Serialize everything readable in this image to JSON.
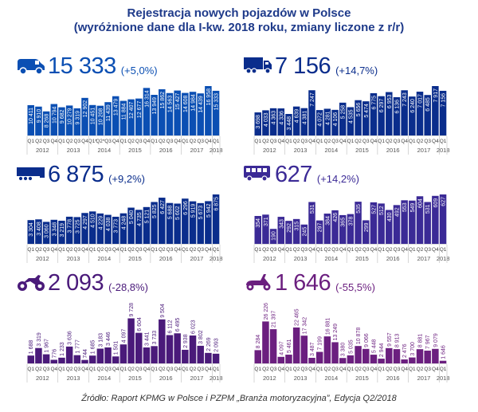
{
  "title_line1": "Rejestracja nowych pojazdów w Polsce",
  "title_line2": "(wyróżnione dane dla I-kw. 2018 roku, zmiany liczone z r/r)",
  "source": "Źródło: Raport KPMG w Polsce i PZPM „Branża motoryzacyjna”, Edycja Q2/2018",
  "chart_data": [
    {
      "type": "bar",
      "id": "vans",
      "icon": "van-icon",
      "headline_value": "15 333",
      "headline_change": "(+5,0%)",
      "color": "#0b4fb3",
      "label_inside": true,
      "categories": [
        "Q1",
        "Q2",
        "Q3",
        "Q4",
        "Q1",
        "Q2",
        "Q3",
        "Q4",
        "Q1*",
        "Q2*",
        "Q3",
        "Q4",
        "Q1",
        "Q2",
        "Q3",
        "Q4",
        "Q1",
        "Q2",
        "Q3",
        "Q4",
        "Q1",
        "Q2",
        "Q3",
        "Q4",
        "Q1"
      ],
      "years": [
        "2012",
        "2013",
        "2014",
        "2015",
        "2016",
        "2017",
        "2018"
      ],
      "values": [
        10411,
        9910,
        8268,
        10794,
        9682,
        10279,
        9319,
        12902,
        10451,
        10208,
        11439,
        13479,
        11884,
        12407,
        12677,
        16314,
        13949,
        15862,
        14563,
        15427,
        14608,
        14984,
        14439,
        16958,
        15333
      ],
      "labels": [
        "10 411",
        "9 910",
        "8 268",
        "10 794",
        "9 682",
        "10 279",
        "9 319",
        "12 902",
        "10 451",
        "10 208",
        "11 439",
        "13 479",
        "11 884",
        "12 407",
        "12 677",
        "16 314",
        "13 949",
        "15 862",
        "14 563",
        "15 427",
        "14 608",
        "14 984",
        "14 439",
        "16 958",
        "15 333"
      ]
    },
    {
      "type": "bar",
      "id": "trucks",
      "icon": "truck-icon",
      "headline_value": "7 156",
      "headline_change": "(+14,7%)",
      "color": "#0a2d8c",
      "label_inside": true,
      "categories": [
        "Q1",
        "Q2",
        "Q3",
        "Q4",
        "Q1",
        "Q2",
        "Q3",
        "Q4",
        "Q1",
        "Q2",
        "Q3",
        "Q4",
        "Q1",
        "Q2",
        "Q3",
        "Q4",
        "Q1",
        "Q2",
        "Q3",
        "Q4",
        "Q1",
        "Q2",
        "Q3",
        "Q4",
        "Q1"
      ],
      "years": [
        "2012",
        "2013",
        "2014",
        "2015",
        "2016",
        "2017",
        "2018"
      ],
      "values": [
        3698,
        4033,
        4363,
        4336,
        3448,
        4639,
        4381,
        7247,
        4072,
        4281,
        4106,
        5258,
        4535,
        5656,
        5474,
        6775,
        6297,
        6953,
        6136,
        7243,
        6240,
        7017,
        6485,
        7917,
        7156
      ],
      "labels": [
        "3 698",
        "4 033",
        "4 363",
        "4 336",
        "3 448",
        "4 639",
        "4 381",
        "7 247",
        "4 072",
        "4 281",
        "4 106",
        "5 258",
        "4 535",
        "5 656",
        "5 474",
        "6 775",
        "6 297",
        "6 953",
        "6 136",
        "7 243",
        "6 240",
        "7 017",
        "6 485",
        "7 917",
        "7 156"
      ]
    },
    {
      "type": "bar",
      "id": "trailers",
      "icon": "trailer-icon",
      "headline_value": "6 875",
      "headline_change": "(+9,2%)",
      "color": "#0a2d8c",
      "label_inside": true,
      "categories": [
        "Q1",
        "Q2",
        "Q3",
        "Q4",
        "Q1",
        "Q2",
        "Q3",
        "Q4",
        "Q1",
        "Q2",
        "Q3",
        "Q4",
        "Q1",
        "Q2",
        "Q3",
        "Q4",
        "Q1",
        "Q2",
        "Q3",
        "Q4",
        "Q1",
        "Q2",
        "Q3",
        "Q4",
        "Q1"
      ],
      "years": [
        "2012",
        "2013",
        "2014",
        "2015",
        "2016",
        "2017",
        "2018"
      ],
      "values": [
        3304,
        3408,
        3060,
        3348,
        3219,
        3778,
        3725,
        4297,
        4510,
        4229,
        4038,
        3773,
        4248,
        5040,
        4735,
        5121,
        5825,
        6427,
        5688,
        5602,
        6296,
        5919,
        5673,
        5942,
        6875
      ],
      "labels": [
        "3 304",
        "3 408",
        "3 060",
        "3 348",
        "3 219",
        "3 778",
        "3 725",
        "4 297",
        "4 510",
        "4 229",
        "4 038",
        "3 773",
        "4 248",
        "5 040",
        "4 735",
        "5 121",
        "5 825",
        "6 427",
        "5 688",
        "5 602",
        "6 296",
        "5 919",
        "5 673",
        "5 942",
        "6 875"
      ]
    },
    {
      "type": "bar",
      "id": "buses",
      "icon": "bus-icon",
      "headline_value": "627",
      "headline_change": "(+14,2%)",
      "color": "#3b2a96",
      "label_inside": true,
      "categories": [
        "Q1",
        "Q2",
        "Q3",
        "Q4",
        "Q1",
        "Q2",
        "Q3",
        "Q4",
        "Q1",
        "Q2",
        "Q3",
        "Q4",
        "Q1",
        "Q2",
        "Q3",
        "Q4",
        "Q1",
        "Q2",
        "Q3",
        "Q4",
        "Q1",
        "Q2",
        "Q3",
        "Q4",
        "Q1"
      ],
      "years": [
        "2012",
        "2013",
        "2014",
        "2015",
        "2016",
        "2017",
        "2018"
      ],
      "values": [
        354,
        371,
        190,
        343,
        292,
        315,
        245,
        531,
        297,
        384,
        426,
        365,
        378,
        535,
        299,
        527,
        512,
        430,
        492,
        553,
        549,
        604,
        531,
        609,
        627
      ],
      "labels": [
        "354",
        "371",
        "190",
        "343",
        "292",
        "315",
        "245",
        "531",
        "297",
        "384",
        "426",
        "365",
        "378",
        "535",
        "299",
        "527",
        "512",
        "430",
        "492",
        "553",
        "549",
        "604",
        "531",
        "609",
        "627"
      ]
    },
    {
      "type": "bar",
      "id": "motorcycles",
      "icon": "motorcycle-icon",
      "headline_value": "2 093",
      "headline_change": "(-28,8%)",
      "color": "#4a1a7a",
      "label_inside": false,
      "categories": [
        "Q1",
        "Q2",
        "Q3",
        "Q4",
        "Q1",
        "Q2",
        "Q3",
        "Q4",
        "Q1",
        "Q2",
        "Q3",
        "Q4",
        "Q1",
        "Q2",
        "Q3",
        "Q4",
        "Q1",
        "Q2",
        "Q3",
        "Q4",
        "Q1",
        "Q2",
        "Q3",
        "Q4",
        "Q1"
      ],
      "years": [
        "2012",
        "2013",
        "2014",
        "2015",
        "2016",
        "2017",
        "2018"
      ],
      "values": [
        1688,
        3319,
        1967,
        776,
        1233,
        3636,
        1777,
        744,
        1685,
        3183,
        3446,
        1501,
        4097,
        9728,
        6604,
        3441,
        3733,
        9504,
        6112,
        6495,
        2938,
        6023,
        3802,
        2269,
        2093
      ],
      "labels": [
        "1 688",
        "3 319",
        "1 967",
        "776",
        "1 233",
        "3 636",
        "1 777",
        "744",
        "1 685",
        "3 183",
        "3 446",
        "1 501",
        "4 097",
        "9 728",
        "6 604",
        "3 441",
        "3 733",
        "9 504",
        "6 112",
        "6 495",
        "2 938",
        "6 023",
        "3 802",
        "2 269",
        "2 093"
      ]
    },
    {
      "type": "bar",
      "id": "mopeds",
      "icon": "scooter-icon",
      "headline_value": "1 646",
      "headline_change": "(-55,5%)",
      "color": "#6b1f7f",
      "label_inside": false,
      "categories": [
        "Q1",
        "Q2",
        "Q3",
        "Q4",
        "Q1",
        "Q2",
        "Q3",
        "Q4",
        "Q1",
        "Q2",
        "Q3",
        "Q4",
        "Q1",
        "Q2",
        "Q3",
        "Q4",
        "Q1",
        "Q2",
        "Q3",
        "Q4",
        "Q1",
        "Q2",
        "Q3",
        "Q4",
        "Q1"
      ],
      "years": [
        "2012",
        "2013",
        "2014",
        "2015",
        "2016",
        "2017",
        "2018"
      ],
      "values": [
        8284,
        26226,
        21397,
        4097,
        5461,
        22465,
        17342,
        3487,
        7199,
        16881,
        13249,
        3380,
        5035,
        10878,
        9066,
        5448,
        2944,
        9557,
        8913,
        2476,
        3700,
        8881,
        7967,
        9079,
        1646
      ],
      "labels": [
        "8 284",
        "26 226",
        "21 397",
        "4 097",
        "5 461",
        "22 465",
        "17 342",
        "3 487",
        "7 199",
        "16 881",
        "13 249",
        "3 380",
        "5 035",
        "10 878",
        "9 066",
        "5 448",
        "2 944",
        "9 557",
        "8 913",
        "2 476",
        "3 700",
        "8 881",
        "7 967",
        "9 079",
        "1 646"
      ]
    }
  ]
}
